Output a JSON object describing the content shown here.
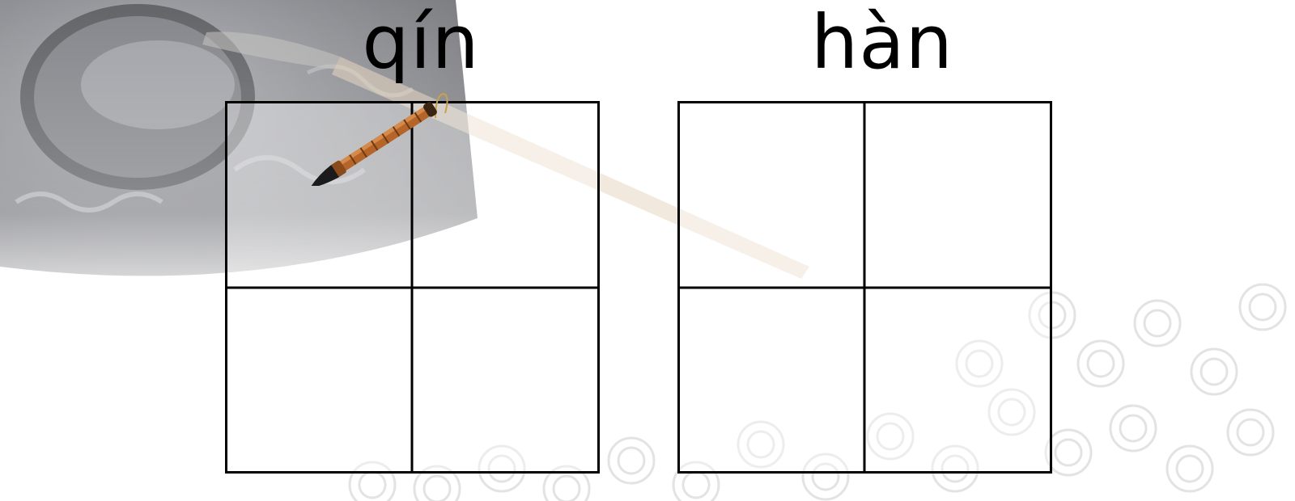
{
  "cards": [
    {
      "pinyin": "qín"
    },
    {
      "pinyin": "hàn"
    }
  ],
  "decorations": {
    "background_items": [
      "inkstone-image",
      "wooden-brush-handle",
      "swirl-cloud-pattern"
    ],
    "pointer": "calligraphy-brush-icon"
  },
  "colors": {
    "text": "#000000",
    "grid_line": "#000000",
    "background": "#ffffff"
  }
}
